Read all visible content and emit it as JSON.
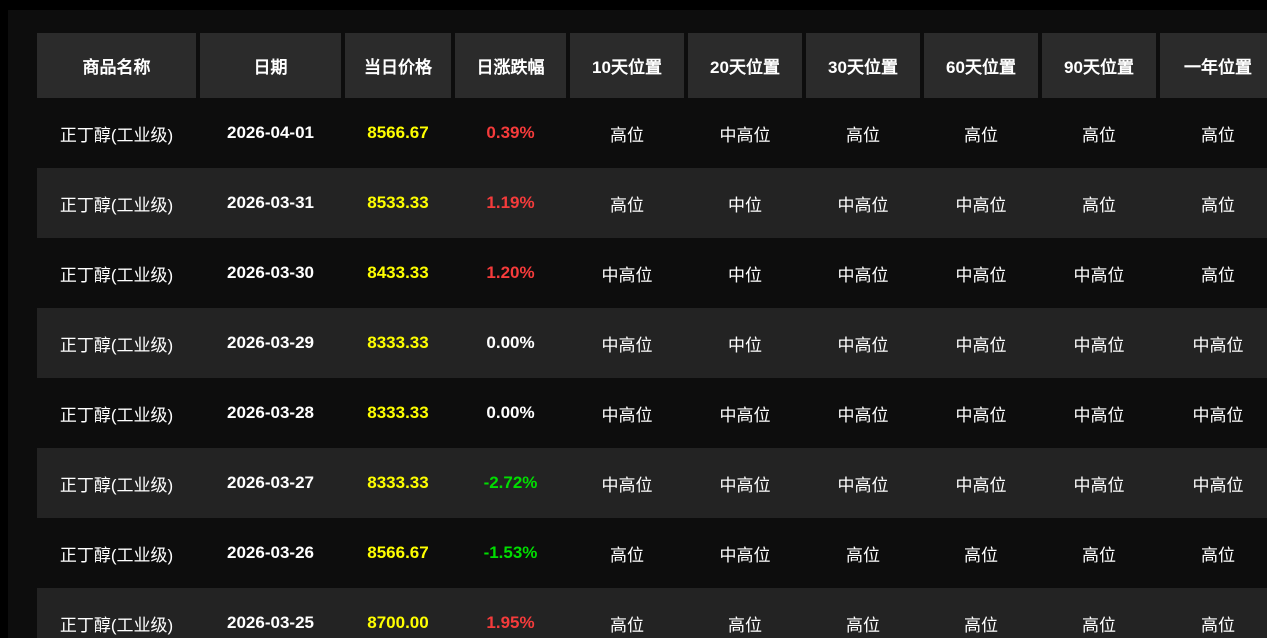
{
  "table": {
    "columns": [
      {
        "key": "name",
        "label": "商品名称"
      },
      {
        "key": "date",
        "label": "日期"
      },
      {
        "key": "price",
        "label": "当日价格"
      },
      {
        "key": "change",
        "label": "日涨跌幅"
      },
      {
        "key": "pos10",
        "label": "10天位置"
      },
      {
        "key": "pos20",
        "label": "20天位置"
      },
      {
        "key": "pos30",
        "label": "30天位置"
      },
      {
        "key": "pos60",
        "label": "60天位置"
      },
      {
        "key": "pos90",
        "label": "90天位置"
      },
      {
        "key": "posYear",
        "label": "一年位置"
      }
    ],
    "rows": [
      {
        "name": "正丁醇(工业级)",
        "date": "2026-04-01",
        "price": "8566.67",
        "change": "0.39%",
        "trend": "up",
        "positions": [
          "高位",
          "中高位",
          "高位",
          "高位",
          "高位",
          "高位"
        ]
      },
      {
        "name": "正丁醇(工业级)",
        "date": "2026-03-31",
        "price": "8533.33",
        "change": "1.19%",
        "trend": "up",
        "positions": [
          "高位",
          "中位",
          "中高位",
          "中高位",
          "高位",
          "高位"
        ]
      },
      {
        "name": "正丁醇(工业级)",
        "date": "2026-03-30",
        "price": "8433.33",
        "change": "1.20%",
        "trend": "up",
        "positions": [
          "中高位",
          "中位",
          "中高位",
          "中高位",
          "中高位",
          "高位"
        ]
      },
      {
        "name": "正丁醇(工业级)",
        "date": "2026-03-29",
        "price": "8333.33",
        "change": "0.00%",
        "trend": "flat",
        "positions": [
          "中高位",
          "中位",
          "中高位",
          "中高位",
          "中高位",
          "中高位"
        ]
      },
      {
        "name": "正丁醇(工业级)",
        "date": "2026-03-28",
        "price": "8333.33",
        "change": "0.00%",
        "trend": "flat",
        "positions": [
          "中高位",
          "中高位",
          "中高位",
          "中高位",
          "中高位",
          "中高位"
        ]
      },
      {
        "name": "正丁醇(工业级)",
        "date": "2026-03-27",
        "price": "8333.33",
        "change": "-2.72%",
        "trend": "down",
        "positions": [
          "中高位",
          "中高位",
          "中高位",
          "中高位",
          "中高位",
          "中高位"
        ]
      },
      {
        "name": "正丁醇(工业级)",
        "date": "2026-03-26",
        "price": "8566.67",
        "change": "-1.53%",
        "trend": "down",
        "positions": [
          "高位",
          "中高位",
          "高位",
          "高位",
          "高位",
          "高位"
        ]
      },
      {
        "name": "正丁醇(工业级)",
        "date": "2026-03-25",
        "price": "8700.00",
        "change": "1.95%",
        "trend": "up",
        "positions": [
          "高位",
          "高位",
          "高位",
          "高位",
          "高位",
          "高位"
        ]
      }
    ]
  },
  "colors": {
    "price": "#ffff00",
    "up": "#f53b3b",
    "down": "#00dd00",
    "flat": "#ffffff",
    "header_bg": "#2b2b2b",
    "stripe_bg": "#232323",
    "page_bg": "#0d0d0d"
  }
}
